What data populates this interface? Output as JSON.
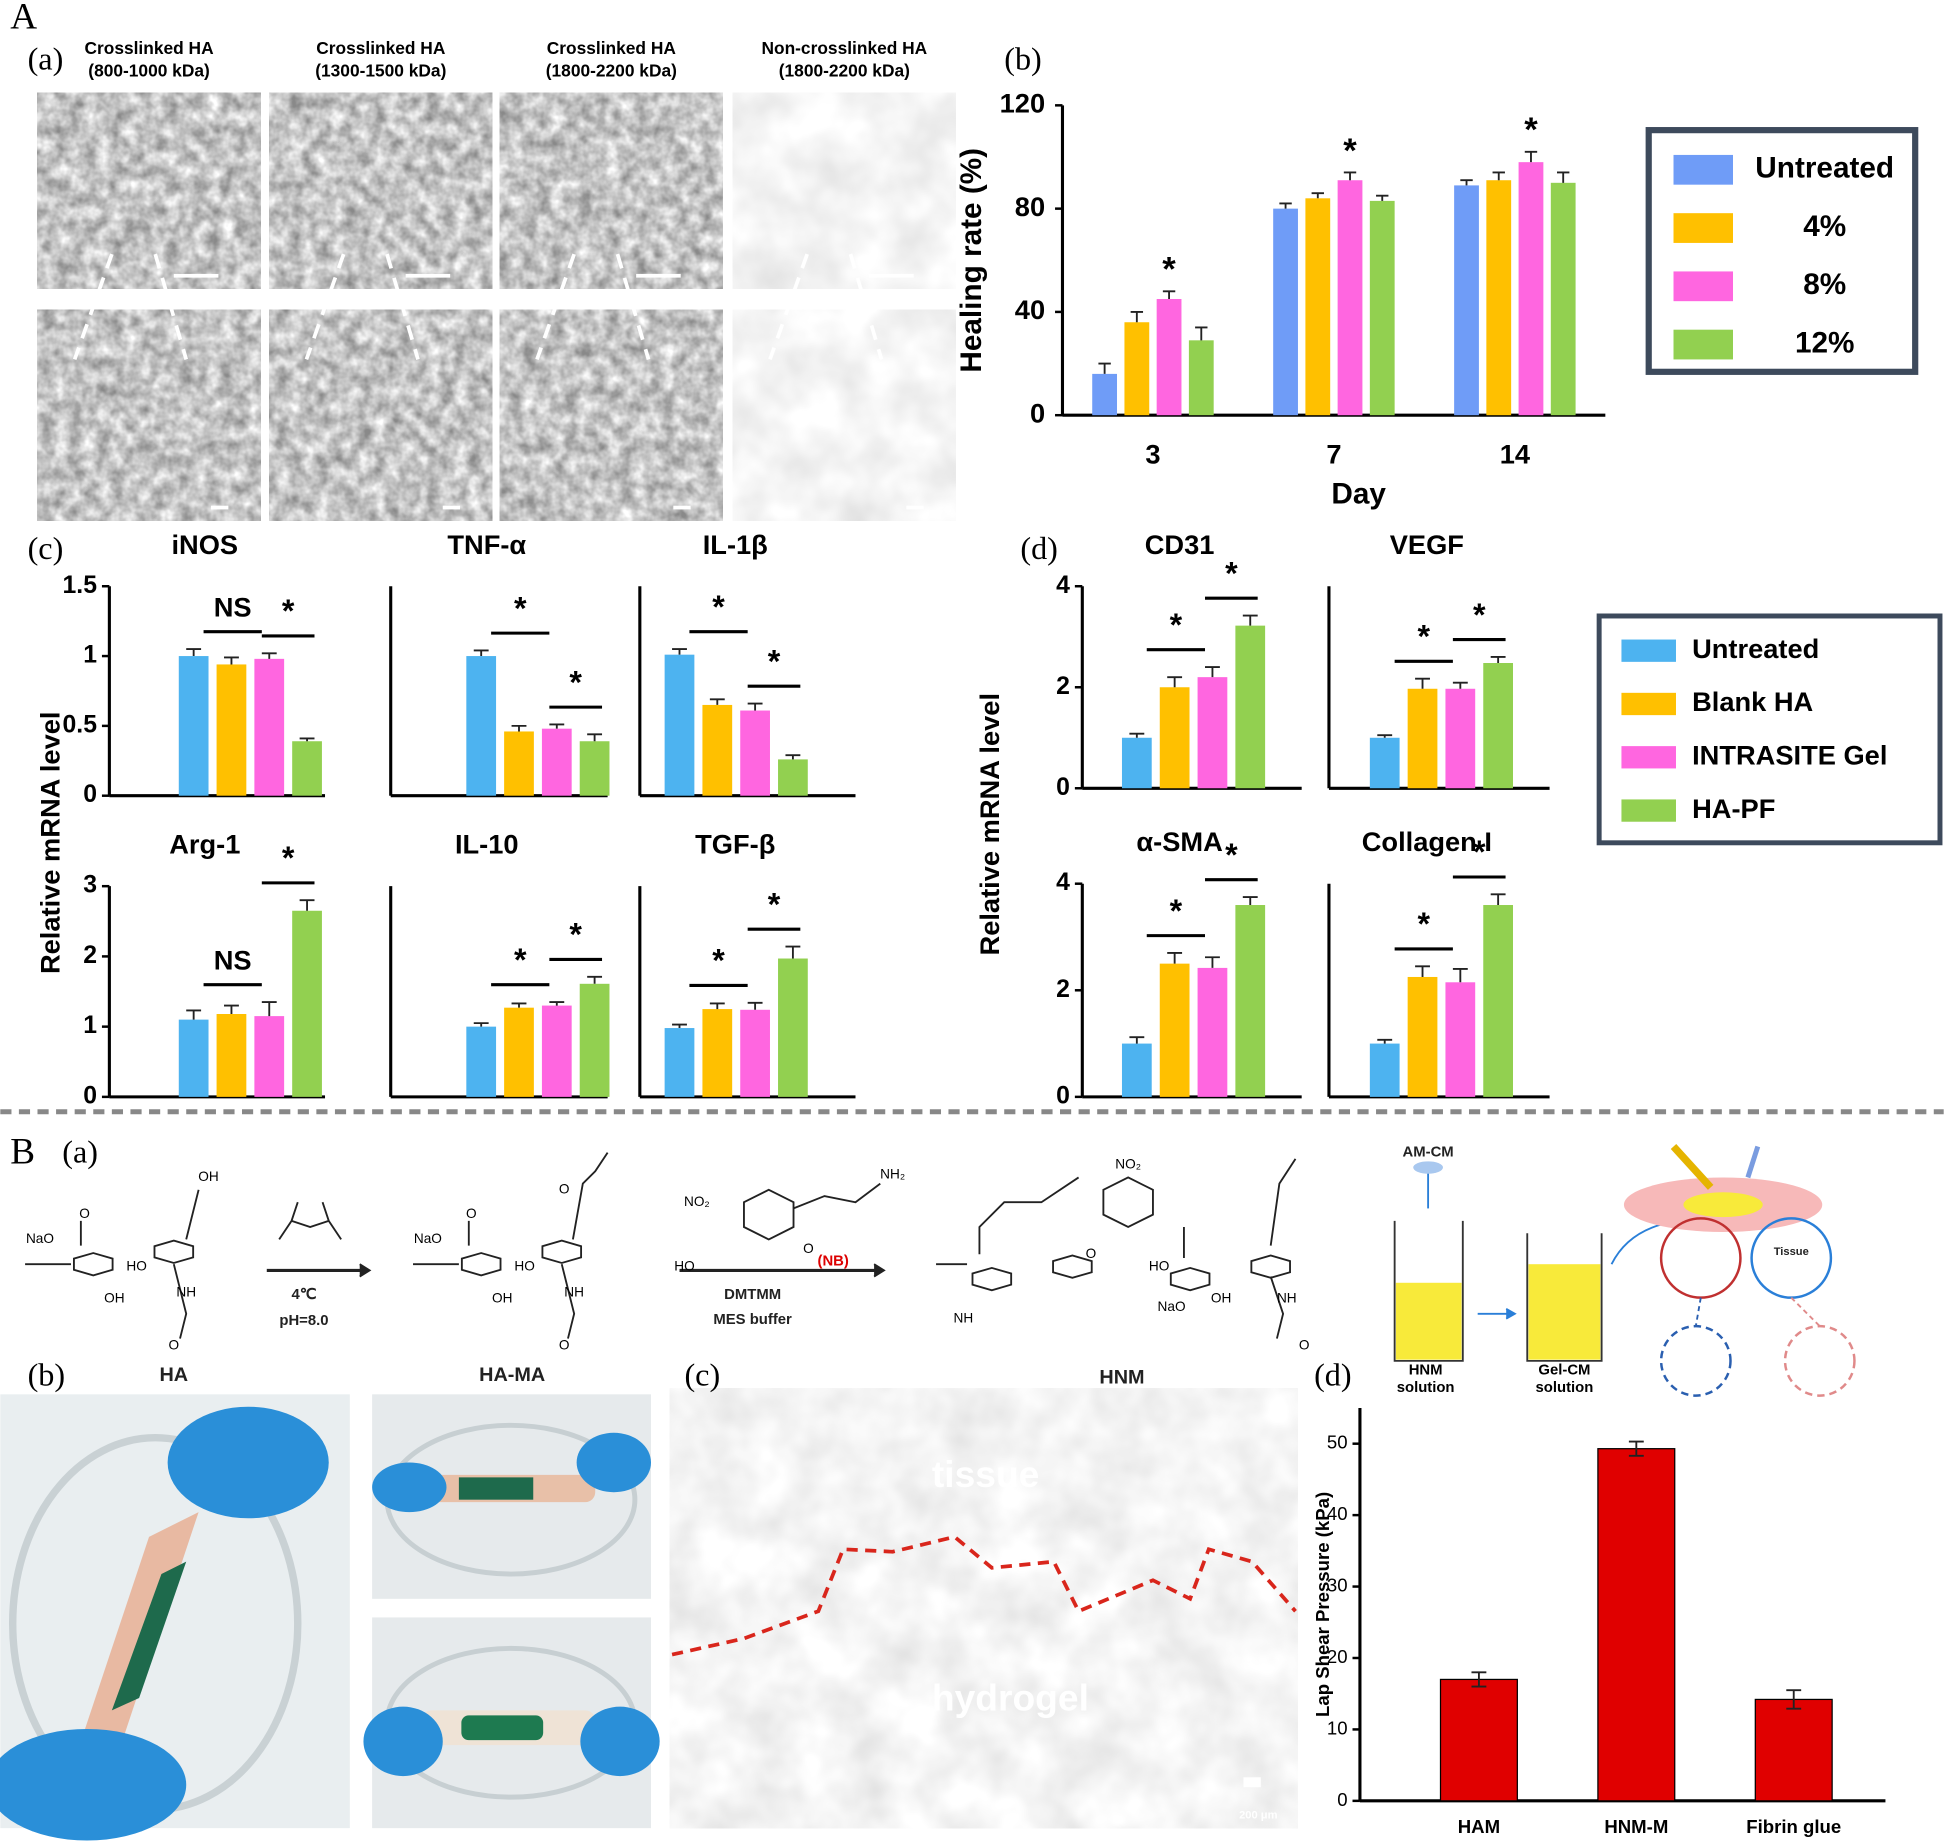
{
  "figure": {
    "panels": {
      "A": "A",
      "Aa": "(a)",
      "Ab": "(b)",
      "Ac": "(c)",
      "Ad": "(d)",
      "B": "B",
      "Ba": "(a)",
      "Bb": "(b)",
      "Bc": "(c)",
      "Bd": "(d)"
    },
    "sem_labels": [
      [
        "Crosslinked HA",
        "(800-1000 kDa)"
      ],
      [
        "Crosslinked HA",
        "(1300-1500 kDa)"
      ],
      [
        "Crosslinked HA",
        "(1800-2200 kDa)"
      ],
      [
        "Non-crosslinked HA",
        "(1800-2200 kDa)"
      ]
    ],
    "ylabel_c": "Relative mRNA  level",
    "ylabel_d": "Relative mRNA  level",
    "legend": [
      {
        "name": "Untreated",
        "color": "#4db3f0"
      },
      {
        "name": "Blank HA",
        "color": "#ffc000"
      },
      {
        "name": "INTRASITE Gel",
        "color": "#ff66e0"
      },
      {
        "name": "HA-PF",
        "color": "#92d050"
      }
    ],
    "scheme": {
      "cond1": "4℃",
      "cond2": "pH=8.0",
      "reagent1": "DMTMM",
      "reagent2": "MES buffer",
      "nb": "(NB)",
      "amcm": "AM-CM",
      "hnm": [
        "HNM",
        "solution"
      ],
      "gelcm": [
        "Gel-CM",
        "solution"
      ],
      "tissue": "Tissue",
      "atoms": [
        "NaO",
        "O",
        "OH",
        "HO",
        "OH",
        "NH",
        "O",
        "NaO",
        "O",
        "O",
        "HO",
        "OH",
        "NH",
        "O",
        "NO₂",
        "HO",
        "O",
        "NH₂",
        "NO₂",
        "O",
        "NH",
        "NaO",
        "OH",
        "HO",
        "NH",
        "O"
      ]
    },
    "photos": {
      "ha": "HA",
      "hama": "HA-MA",
      "hnm": "HNM",
      "tissue": "tissue",
      "hydrogel": "hydrogel",
      "scale": "200 μm"
    }
  },
  "chart_data": [
    {
      "type": "bar",
      "ylabel": "Healing rate (%)",
      "xlabel": "Day",
      "categories": [
        "3",
        "7",
        "14"
      ],
      "ylim": [
        0,
        120
      ],
      "yticks": [
        0,
        40,
        80,
        120
      ],
      "annotations": [
        "*"
      ],
      "series": [
        {
          "name": "Untreated",
          "color": "#6f9cf7",
          "values": [
            16,
            80,
            89
          ],
          "errors": [
            4,
            2,
            2
          ]
        },
        {
          "name": "4%",
          "color": "#ffc000",
          "values": [
            36,
            84,
            91
          ],
          "errors": [
            4,
            2,
            3
          ]
        },
        {
          "name": "8%",
          "color": "#ff66e0",
          "values": [
            45,
            91,
            98
          ],
          "errors": [
            3,
            3,
            4
          ]
        },
        {
          "name": "12%",
          "color": "#92d050",
          "values": [
            29,
            83,
            90
          ],
          "errors": [
            5,
            2,
            4
          ]
        }
      ]
    },
    {
      "type": "bar",
      "title": "iNOS",
      "values": [
        1.0,
        0.94,
        0.98,
        0.39
      ],
      "errors": [
        0.05,
        0.05,
        0.04,
        0.02
      ],
      "ylim": [
        0,
        1.5
      ],
      "yticks": [
        0,
        0.5,
        1,
        1.5
      ],
      "annotations": [
        "NS",
        "*"
      ]
    },
    {
      "type": "bar",
      "title": "TNF-α",
      "values": [
        1.0,
        0.46,
        0.48,
        0.39
      ],
      "errors": [
        0.04,
        0.04,
        0.03,
        0.05
      ],
      "ylim": [
        0,
        1.5
      ],
      "annotations": [
        "*",
        "*"
      ]
    },
    {
      "type": "bar",
      "title": "IL-1β",
      "values": [
        1.01,
        0.65,
        0.61,
        0.26
      ],
      "errors": [
        0.04,
        0.04,
        0.05,
        0.03
      ],
      "ylim": [
        0,
        1.5
      ],
      "annotations": [
        "*",
        "*"
      ]
    },
    {
      "type": "bar",
      "title": "Arg-1",
      "values": [
        1.1,
        1.18,
        1.15,
        2.65
      ],
      "errors": [
        0.13,
        0.12,
        0.2,
        0.15
      ],
      "ylim": [
        0,
        3
      ],
      "yticks": [
        0,
        1,
        2,
        3
      ],
      "annotations": [
        "NS",
        "*"
      ]
    },
    {
      "type": "bar",
      "title": "IL-10",
      "values": [
        1.0,
        1.27,
        1.3,
        1.61
      ],
      "errors": [
        0.05,
        0.06,
        0.05,
        0.1
      ],
      "ylim": [
        0,
        3
      ],
      "annotations": [
        "*",
        "*"
      ]
    },
    {
      "type": "bar",
      "title": "TGF-β",
      "values": [
        0.98,
        1.25,
        1.24,
        1.97
      ],
      "errors": [
        0.05,
        0.08,
        0.1,
        0.17
      ],
      "ylim": [
        0,
        3
      ],
      "annotations": [
        "*",
        "*"
      ]
    },
    {
      "type": "bar",
      "title": "CD31",
      "values": [
        1.0,
        2.0,
        2.2,
        3.22
      ],
      "errors": [
        0.08,
        0.2,
        0.2,
        0.2
      ],
      "ylim": [
        0,
        4
      ],
      "yticks": [
        0,
        2,
        4
      ],
      "annotations": [
        "*",
        "*"
      ]
    },
    {
      "type": "bar",
      "title": "VEGF",
      "values": [
        1.0,
        1.97,
        1.97,
        2.48
      ],
      "errors": [
        0.05,
        0.2,
        0.12,
        0.12
      ],
      "ylim": [
        0,
        4
      ],
      "annotations": [
        "*",
        "*"
      ]
    },
    {
      "type": "bar",
      "title": "α-SMA",
      "values": [
        1.0,
        2.5,
        2.42,
        3.6
      ],
      "errors": [
        0.12,
        0.2,
        0.2,
        0.15
      ],
      "ylim": [
        0,
        4
      ],
      "yticks": [
        0,
        2,
        4
      ],
      "annotations": [
        "*",
        "*"
      ]
    },
    {
      "type": "bar",
      "title": "Collagen I",
      "values": [
        1.0,
        2.25,
        2.15,
        3.6
      ],
      "errors": [
        0.07,
        0.2,
        0.25,
        0.2
      ],
      "ylim": [
        0,
        4
      ],
      "annotations": [
        "*",
        "*"
      ]
    },
    {
      "type": "bar",
      "ylabel": "Lap Shear Pressure (kPa)",
      "categories": [
        "HAM",
        "HNM-M",
        "Fibrin glue"
      ],
      "values": [
        17,
        49.3,
        14.2
      ],
      "errors": [
        1,
        1,
        1.3
      ],
      "color": "#e00000",
      "ylim": [
        0,
        55
      ],
      "yticks": [
        0,
        10,
        20,
        30,
        40,
        50
      ]
    }
  ]
}
